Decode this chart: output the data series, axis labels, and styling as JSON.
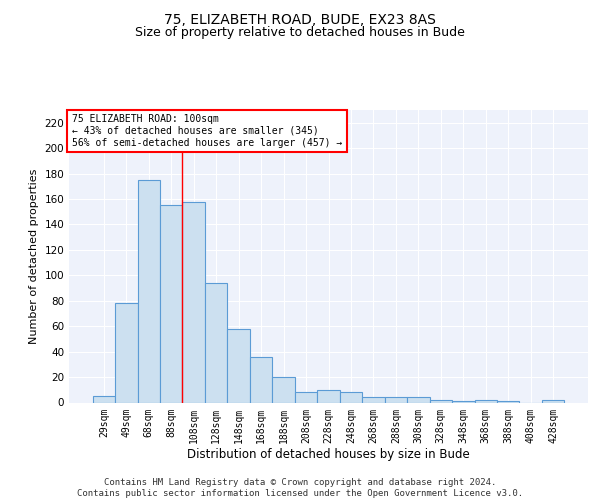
{
  "title1": "75, ELIZABETH ROAD, BUDE, EX23 8AS",
  "title2": "Size of property relative to detached houses in Bude",
  "xlabel": "Distribution of detached houses by size in Bude",
  "ylabel": "Number of detached properties",
  "categories": [
    "29sqm",
    "49sqm",
    "68sqm",
    "88sqm",
    "108sqm",
    "128sqm",
    "148sqm",
    "168sqm",
    "188sqm",
    "208sqm",
    "228sqm",
    "248sqm",
    "268sqm",
    "288sqm",
    "308sqm",
    "328sqm",
    "348sqm",
    "368sqm",
    "388sqm",
    "408sqm",
    "428sqm"
  ],
  "values": [
    5,
    78,
    175,
    155,
    158,
    94,
    58,
    36,
    20,
    8,
    10,
    8,
    4,
    4,
    4,
    2,
    1,
    2,
    1,
    0,
    2
  ],
  "bar_color": "#cce0f0",
  "bar_edge_color": "#5b9bd5",
  "bar_edge_width": 0.8,
  "red_line_x": 3.5,
  "annotation_text": "75 ELIZABETH ROAD: 100sqm\n← 43% of detached houses are smaller (345)\n56% of semi-detached houses are larger (457) →",
  "annotation_box_color": "white",
  "annotation_box_edge_color": "red",
  "ylim": [
    0,
    230
  ],
  "yticks": [
    0,
    20,
    40,
    60,
    80,
    100,
    120,
    140,
    160,
    180,
    200,
    220
  ],
  "footer": "Contains HM Land Registry data © Crown copyright and database right 2024.\nContains public sector information licensed under the Open Government Licence v3.0.",
  "background_color": "#eef2fb",
  "grid_color": "#ffffff",
  "title1_fontsize": 10,
  "title2_fontsize": 9,
  "xlabel_fontsize": 8.5,
  "ylabel_fontsize": 8,
  "footer_fontsize": 6.5,
  "tick_fontsize": 7,
  "ytick_fontsize": 7.5
}
